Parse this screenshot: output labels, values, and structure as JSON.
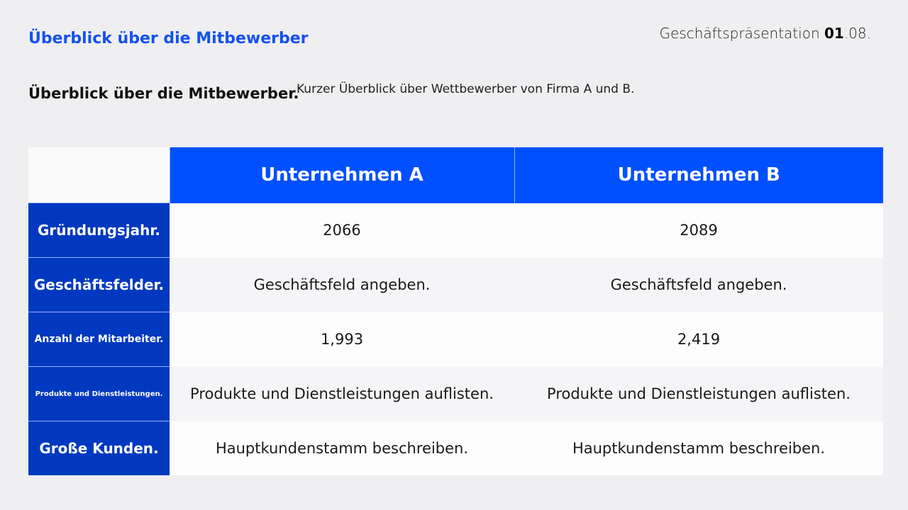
{
  "header": {
    "title": "Überblick über die Mitbewerber",
    "deck_label_prefix": "Geschäftspräsentation ",
    "deck_label_bold": "01",
    "deck_label_suffix": ".08."
  },
  "intro": {
    "heading": "Überblick über die Mitbewerber.",
    "subheading": "Kurzer Überblick über Wettbewerber von Firma A und B."
  },
  "colors": {
    "header_blue": "#0050ff",
    "label_blue": "#0039bf",
    "title_blue": "#1452ee"
  },
  "table": {
    "columns": [
      "Unternehmen A",
      "Unternehmen B"
    ],
    "rows": [
      {
        "label": "Gründungsjahr.",
        "a": "2066",
        "b": "2089"
      },
      {
        "label": "Geschäftsfelder.",
        "a": "Geschäftsfeld angeben.",
        "b": "Geschäftsfeld angeben."
      },
      {
        "label": "Anzahl der Mitarbeiter.",
        "a": "1,993",
        "b": "2,419"
      },
      {
        "label": "Produkte und Dienstleistungen.",
        "a": "Produkte und Dienstleistungen auflisten.",
        "b": "Produkte und Dienstleistungen auflisten."
      },
      {
        "label": "Große Kunden.",
        "a": "Hauptkundenstamm beschreiben.",
        "b": "Hauptkundenstamm beschreiben."
      }
    ]
  }
}
